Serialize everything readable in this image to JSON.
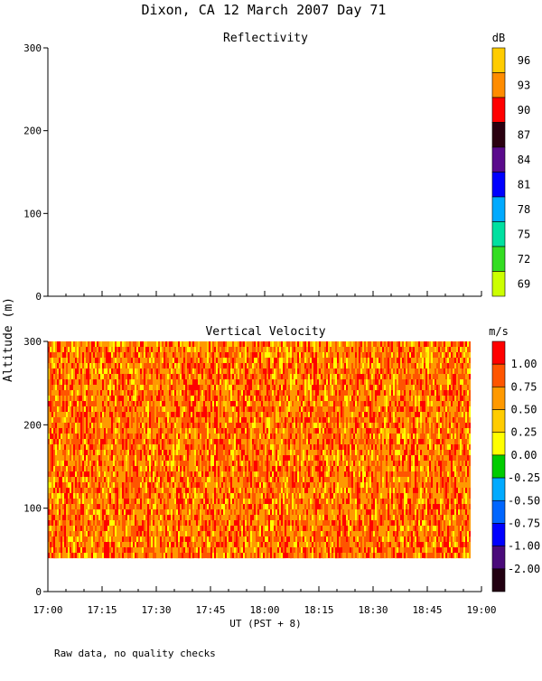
{
  "title": "Dixon, CA 12 March 2007  Day  71",
  "footnote": "Raw data, no quality checks",
  "ylabel": "Altitude (m)",
  "xlabel": "UT  (PST + 8)",
  "x_ticks": [
    "17:00",
    "17:15",
    "17:30",
    "17:45",
    "18:00",
    "18:15",
    "18:30",
    "18:45",
    "19:00"
  ],
  "y_ticks": [
    "0",
    "100",
    "200",
    "300"
  ],
  "chart_data": [
    {
      "type": "heatmap",
      "title": "Reflectivity",
      "colorbar_unit": "dB",
      "colorbar_labels": [
        "96",
        "93",
        "90",
        "87",
        "84",
        "81",
        "78",
        "75",
        "72",
        "69"
      ],
      "colorbar_colors": [
        "#ffcc00",
        "#ff8c00",
        "#ff0000",
        "#2a0010",
        "#5a0a8c",
        "#0000ff",
        "#00aaff",
        "#00e0a0",
        "#33dd22",
        "#ccff00"
      ],
      "x_range": [
        "17:00",
        "19:00"
      ],
      "ylim": [
        0,
        300
      ],
      "data_note": "empty"
    },
    {
      "type": "heatmap",
      "title": "Vertical Velocity",
      "colorbar_unit": "m/s",
      "colorbar_labels": [
        "1.00",
        "0.75",
        "0.50",
        "0.25",
        "0.00",
        "-0.25",
        "-0.50",
        "-0.75",
        "-1.00",
        "-2.00"
      ],
      "colorbar_colors": [
        "#ff0000",
        "#ff5500",
        "#ff9900",
        "#ffcc00",
        "#ffff00",
        "#00cc00",
        "#00aaff",
        "#0066ff",
        "#0000ff",
        "#4a0a7a",
        "#220011"
      ],
      "x_range": [
        "17:00",
        "19:00"
      ],
      "ylim": [
        0,
        300
      ],
      "data_altitude_range": [
        40,
        300
      ],
      "data_time_range": [
        "17:00",
        "18:57"
      ],
      "dominant_values": [
        0.75,
        0.5,
        1.0
      ]
    }
  ]
}
